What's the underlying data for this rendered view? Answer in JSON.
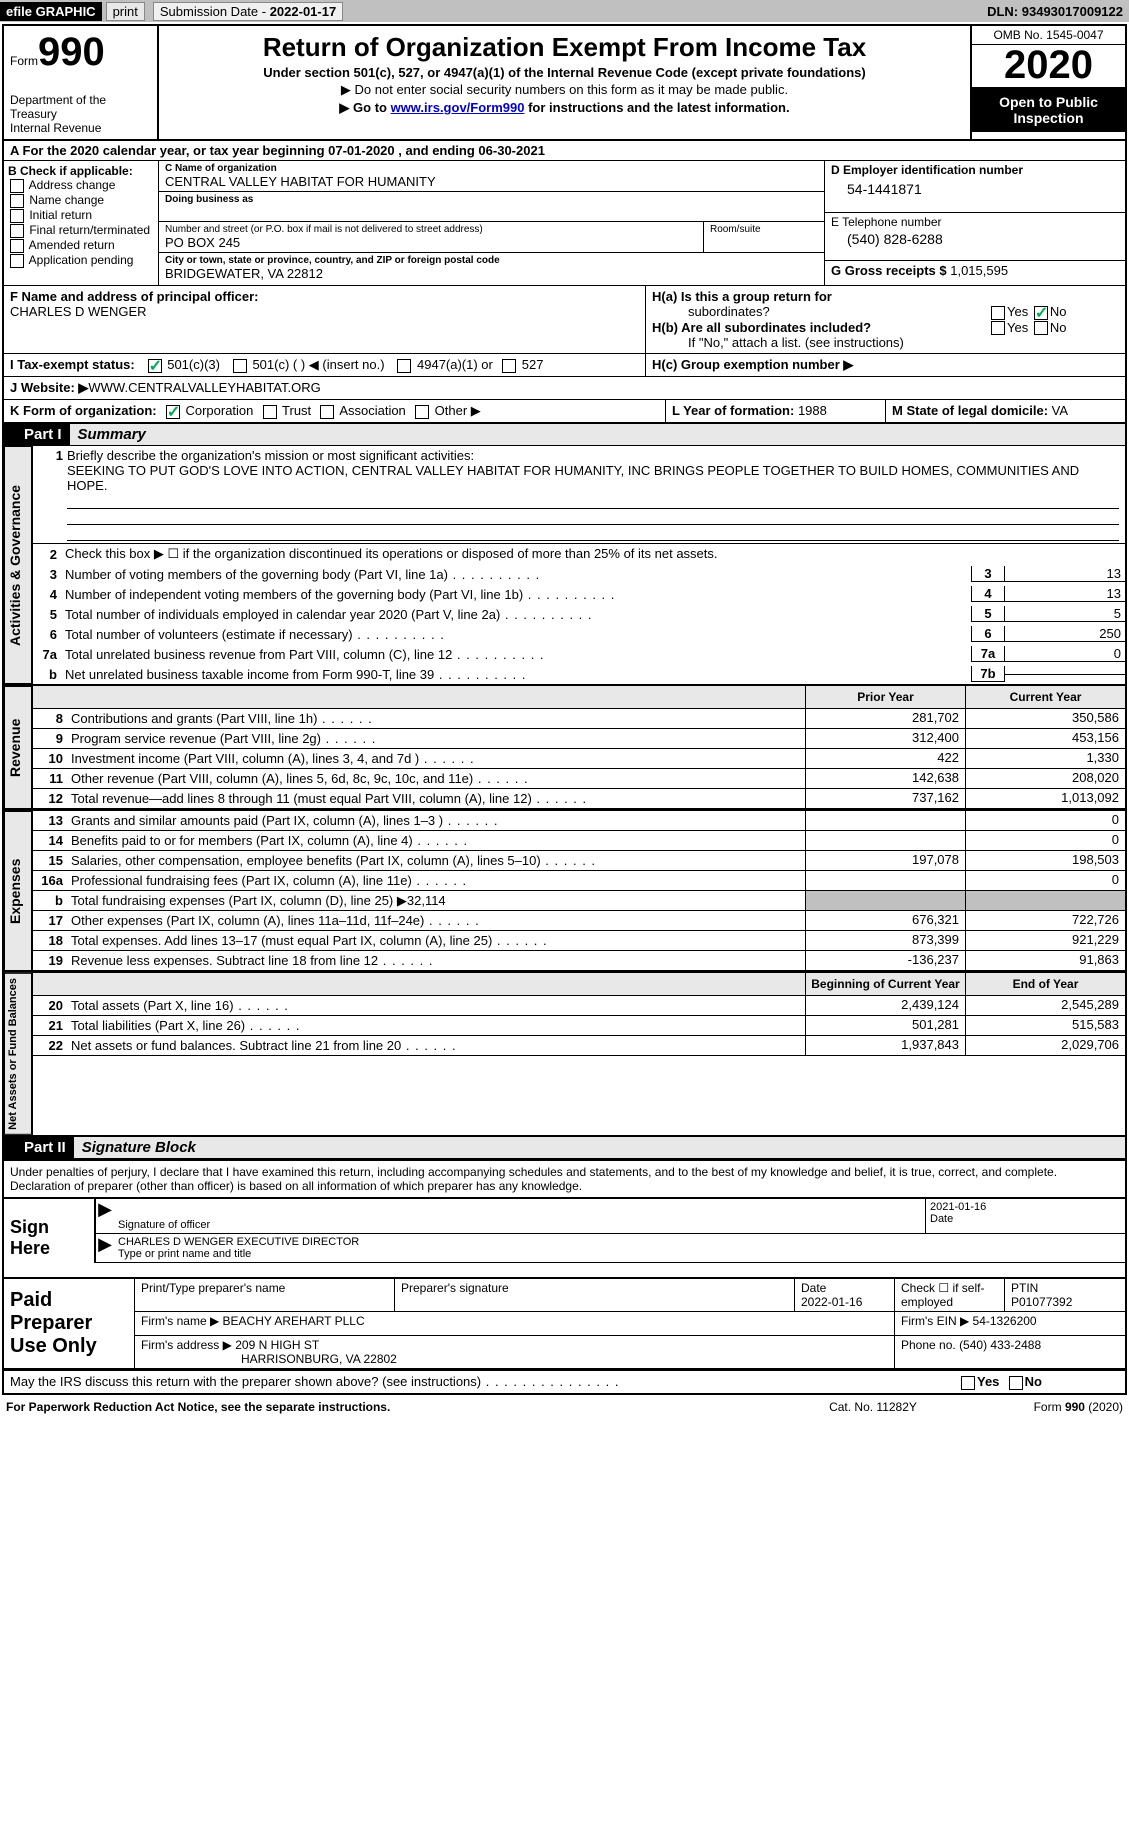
{
  "topbar": {
    "efile": "efile GRAPHIC",
    "print": "print",
    "sub_date_lbl": "Submission Date - ",
    "sub_date": "2022-01-17",
    "dln_lbl": "DLN: ",
    "dln": "93493017009122"
  },
  "header": {
    "form_word": "Form",
    "form_num": "990",
    "dept1": "Department of the",
    "dept2": "Treasury",
    "dept3": "Internal Revenue",
    "title": "Return of Organization Exempt From Income Tax",
    "subtitle": "Under section 501(c), 527, or 4947(a)(1) of the Internal Revenue Code (except private foundations)",
    "note1": "▶ Do not enter social security numbers on this form as it may be made public.",
    "note2_pre": "▶ Go to ",
    "note2_link": "www.irs.gov/Form990",
    "note2_post": " for instructions and the latest information.",
    "omb": "OMB No. 1545-0047",
    "year": "2020",
    "open1": "Open to Public",
    "open2": "Inspection"
  },
  "line_a": {
    "text_pre": "A For the 2020 calendar year, or tax year beginning ",
    "begin": "07-01-2020",
    "mid": " , and ending ",
    "end": "06-30-2021"
  },
  "box_b": {
    "lbl": "B Check if applicable:",
    "o1": "Address change",
    "o2": "Name change",
    "o3": "Initial return",
    "o4": "Final return/terminated",
    "o5": "Amended return",
    "o6": "Application pending"
  },
  "box_c": {
    "name_lbl": "C Name of organization",
    "name": "CENTRAL VALLEY HABITAT FOR HUMANITY",
    "dba_lbl": "Doing business as",
    "addr_lbl": "Number and street (or P.O. box if mail is not delivered to street address)",
    "room_lbl": "Room/suite",
    "addr": "PO BOX 245",
    "city_lbl": "City or town, state or province, country, and ZIP or foreign postal code",
    "city": "BRIDGEWATER, VA  22812"
  },
  "box_d": {
    "lbl": "D Employer identification number",
    "val": "54-1441871"
  },
  "box_e": {
    "lbl": "E Telephone number",
    "val": "(540) 828-6288"
  },
  "box_g": {
    "lbl": "G Gross receipts $ ",
    "val": "1,015,595"
  },
  "box_f": {
    "lbl": "F  Name and address of principal officer:",
    "name": "CHARLES D WENGER"
  },
  "box_h": {
    "ha_lbl": "H(a)  Is this a group return for",
    "ha_sub": "subordinates?",
    "hb_lbl": "H(b)  Are all subordinates included?",
    "hb_note": "If \"No,\" attach a list. (see instructions)",
    "hc_lbl": "H(c)  Group exemption number ▶",
    "yes": "Yes",
    "no": "No"
  },
  "row_i": {
    "lbl": "I     Tax-exempt status:",
    "o1": "501(c)(3)",
    "o2": "501(c) (  ) ◀ (insert no.)",
    "o3": "4947(a)(1) or",
    "o4": "527"
  },
  "row_j": {
    "lbl": "J    Website: ▶  ",
    "val": "WWW.CENTRALVALLEYHABITAT.ORG"
  },
  "row_k": {
    "lbl": "K Form of organization:",
    "o1": "Corporation",
    "o2": "Trust",
    "o3": "Association",
    "o4": "Other ▶",
    "l_lbl": "L Year of formation: ",
    "l_val": "1988",
    "m_lbl": "M State of legal domicile: ",
    "m_val": "VA"
  },
  "part1": {
    "hdr": "Part I",
    "title": "Summary"
  },
  "mission": {
    "lbl_num": "1",
    "lbl": "Briefly describe the organization's mission or most significant activities:",
    "text": "SEEKING TO PUT GOD'S LOVE INTO ACTION, CENTRAL VALLEY HABITAT FOR HUMANITY, INC BRINGS PEOPLE TOGETHER TO BUILD HOMES, COMMUNITIES AND HOPE."
  },
  "gov_label": "Activities & Governance",
  "rev_label": "Revenue",
  "exp_label": "Expenses",
  "net_label": "Net Assets or Fund Balances",
  "gov_lines": [
    {
      "num": "2",
      "desc": "Check this box ▶ ☐  if the organization discontinued its operations or disposed of more than 25% of its net assets."
    },
    {
      "num": "3",
      "desc": "Number of voting members of the governing body (Part VI, line 1a)",
      "box": "3",
      "val": "13"
    },
    {
      "num": "4",
      "desc": "Number of independent voting members of the governing body (Part VI, line 1b)",
      "box": "4",
      "val": "13"
    },
    {
      "num": "5",
      "desc": "Total number of individuals employed in calendar year 2020 (Part V, line 2a)",
      "box": "5",
      "val": "5"
    },
    {
      "num": "6",
      "desc": "Total number of volunteers (estimate if necessary)",
      "box": "6",
      "val": "250"
    },
    {
      "num": "7a",
      "desc": "Total unrelated business revenue from Part VIII, column (C), line 12",
      "box": "7a",
      "val": "0"
    },
    {
      "num": "b",
      "desc": "Net unrelated business taxable income from Form 990-T, line 39",
      "box": "7b",
      "val": ""
    }
  ],
  "col_hdrs": {
    "prior": "Prior Year",
    "current": "Current Year",
    "begin": "Beginning of Current Year",
    "end": "End of Year"
  },
  "rev_lines": [
    {
      "num": "8",
      "desc": "Contributions and grants (Part VIII, line 1h)",
      "p": "281,702",
      "c": "350,586"
    },
    {
      "num": "9",
      "desc": "Program service revenue (Part VIII, line 2g)",
      "p": "312,400",
      "c": "453,156"
    },
    {
      "num": "10",
      "desc": "Investment income (Part VIII, column (A), lines 3, 4, and 7d )",
      "p": "422",
      "c": "1,330"
    },
    {
      "num": "11",
      "desc": "Other revenue (Part VIII, column (A), lines 5, 6d, 8c, 9c, 10c, and 11e)",
      "p": "142,638",
      "c": "208,020"
    },
    {
      "num": "12",
      "desc": "Total revenue—add lines 8 through 11 (must equal Part VIII, column (A), line 12)",
      "p": "737,162",
      "c": "1,013,092"
    }
  ],
  "exp_lines": [
    {
      "num": "13",
      "desc": "Grants and similar amounts paid (Part IX, column (A), lines 1–3 )",
      "p": "",
      "c": "0"
    },
    {
      "num": "14",
      "desc": "Benefits paid to or for members (Part IX, column (A), line 4)",
      "p": "",
      "c": "0"
    },
    {
      "num": "15",
      "desc": "Salaries, other compensation, employee benefits (Part IX, column (A), lines 5–10)",
      "p": "197,078",
      "c": "198,503"
    },
    {
      "num": "16a",
      "desc": "Professional fundraising fees (Part IX, column (A), line 11e)",
      "p": "",
      "c": "0"
    },
    {
      "num": "b",
      "desc": "Total fundraising expenses (Part IX, column (D), line 25) ▶32,114",
      "shaded": true
    },
    {
      "num": "17",
      "desc": "Other expenses (Part IX, column (A), lines 11a–11d, 11f–24e)",
      "p": "676,321",
      "c": "722,726"
    },
    {
      "num": "18",
      "desc": "Total expenses. Add lines 13–17 (must equal Part IX, column (A), line 25)",
      "p": "873,399",
      "c": "921,229"
    },
    {
      "num": "19",
      "desc": "Revenue less expenses. Subtract line 18 from line 12",
      "p": "-136,237",
      "c": "91,863"
    }
  ],
  "net_lines": [
    {
      "num": "20",
      "desc": "Total assets (Part X, line 16)",
      "p": "2,439,124",
      "c": "2,545,289"
    },
    {
      "num": "21",
      "desc": "Total liabilities (Part X, line 26)",
      "p": "501,281",
      "c": "515,583"
    },
    {
      "num": "22",
      "desc": "Net assets or fund balances. Subtract line 21 from line 20",
      "p": "1,937,843",
      "c": "2,029,706"
    }
  ],
  "part2": {
    "hdr": "Part II",
    "title": "Signature Block"
  },
  "sig_decl": "Under penalties of perjury, I declare that I have examined this return, including accompanying schedules and statements, and to the best of my knowledge and belief, it is true, correct, and complete. Declaration of preparer (other than officer) is based on all information of which preparer has any knowledge.",
  "sign_here": "Sign Here",
  "sig_officer_lbl": "Signature of officer",
  "sig_date": "2021-01-16",
  "sig_date_lbl": "Date",
  "sig_name": "CHARLES D WENGER  EXECUTIVE DIRECTOR",
  "sig_name_lbl": "Type or print name and title",
  "prep_hdr": "Paid Preparer Use Only",
  "prep": {
    "name_lbl": "Print/Type preparer's name",
    "sig_lbl": "Preparer's signature",
    "date_lbl": "Date",
    "date": "2022-01-16",
    "chk_lbl": "Check ☐ if self-employed",
    "ptin_lbl": "PTIN",
    "ptin": "P01077392",
    "firm_lbl": "Firm's name   ▶",
    "firm": "BEACHY AREHART PLLC",
    "ein_lbl": "Firm's EIN ▶",
    "ein": "54-1326200",
    "addr_lbl": "Firm's address ▶",
    "addr1": "209 N HIGH ST",
    "addr2": "HARRISONBURG, VA  22802",
    "phone_lbl": "Phone no. ",
    "phone": "(540) 433-2488"
  },
  "may": {
    "text": "May the IRS discuss this return with the preparer shown above? (see instructions)",
    "yes": "Yes",
    "no": "No"
  },
  "footer": {
    "left": "For Paperwork Reduction Act Notice, see the separate instructions.",
    "mid": "Cat. No. 11282Y",
    "right": "Form 990 (2020)"
  }
}
